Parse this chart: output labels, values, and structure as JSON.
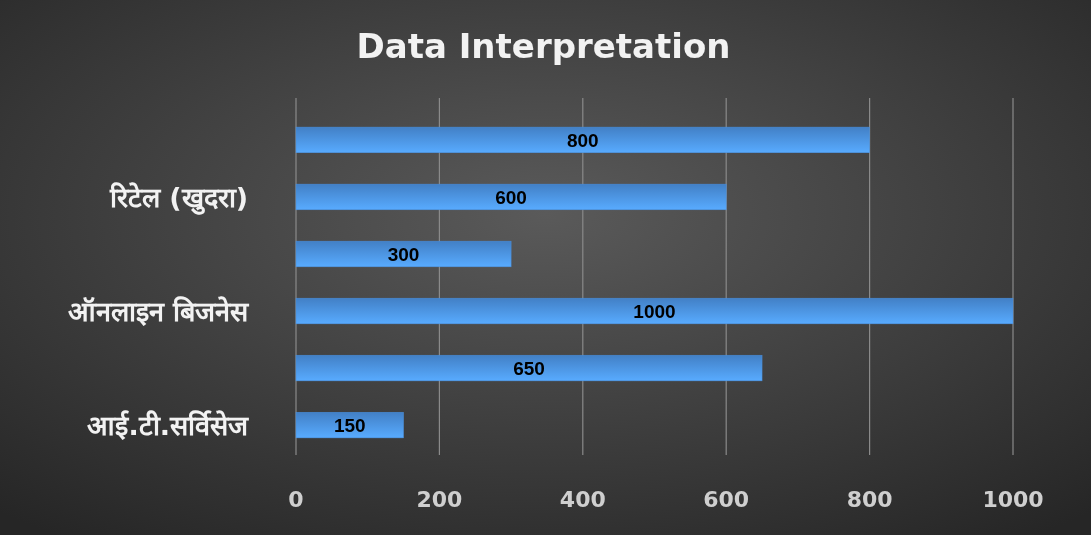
{
  "chart_data": {
    "type": "bar",
    "title": "Data Interpretation",
    "orientation": "horizontal",
    "categories": [
      null,
      "रिटेल (खुदरा)",
      null,
      "ऑनलाइन बिजनेस",
      null,
      "आई.टी.सर्विसेज"
    ],
    "values": [
      800,
      600,
      300,
      1000,
      650,
      150
    ],
    "color": "#4a8fdc",
    "xlim": [
      0,
      1000
    ],
    "xticks": [
      0,
      200,
      400,
      600,
      800,
      1000
    ],
    "grid": "x",
    "data_labels": true
  }
}
